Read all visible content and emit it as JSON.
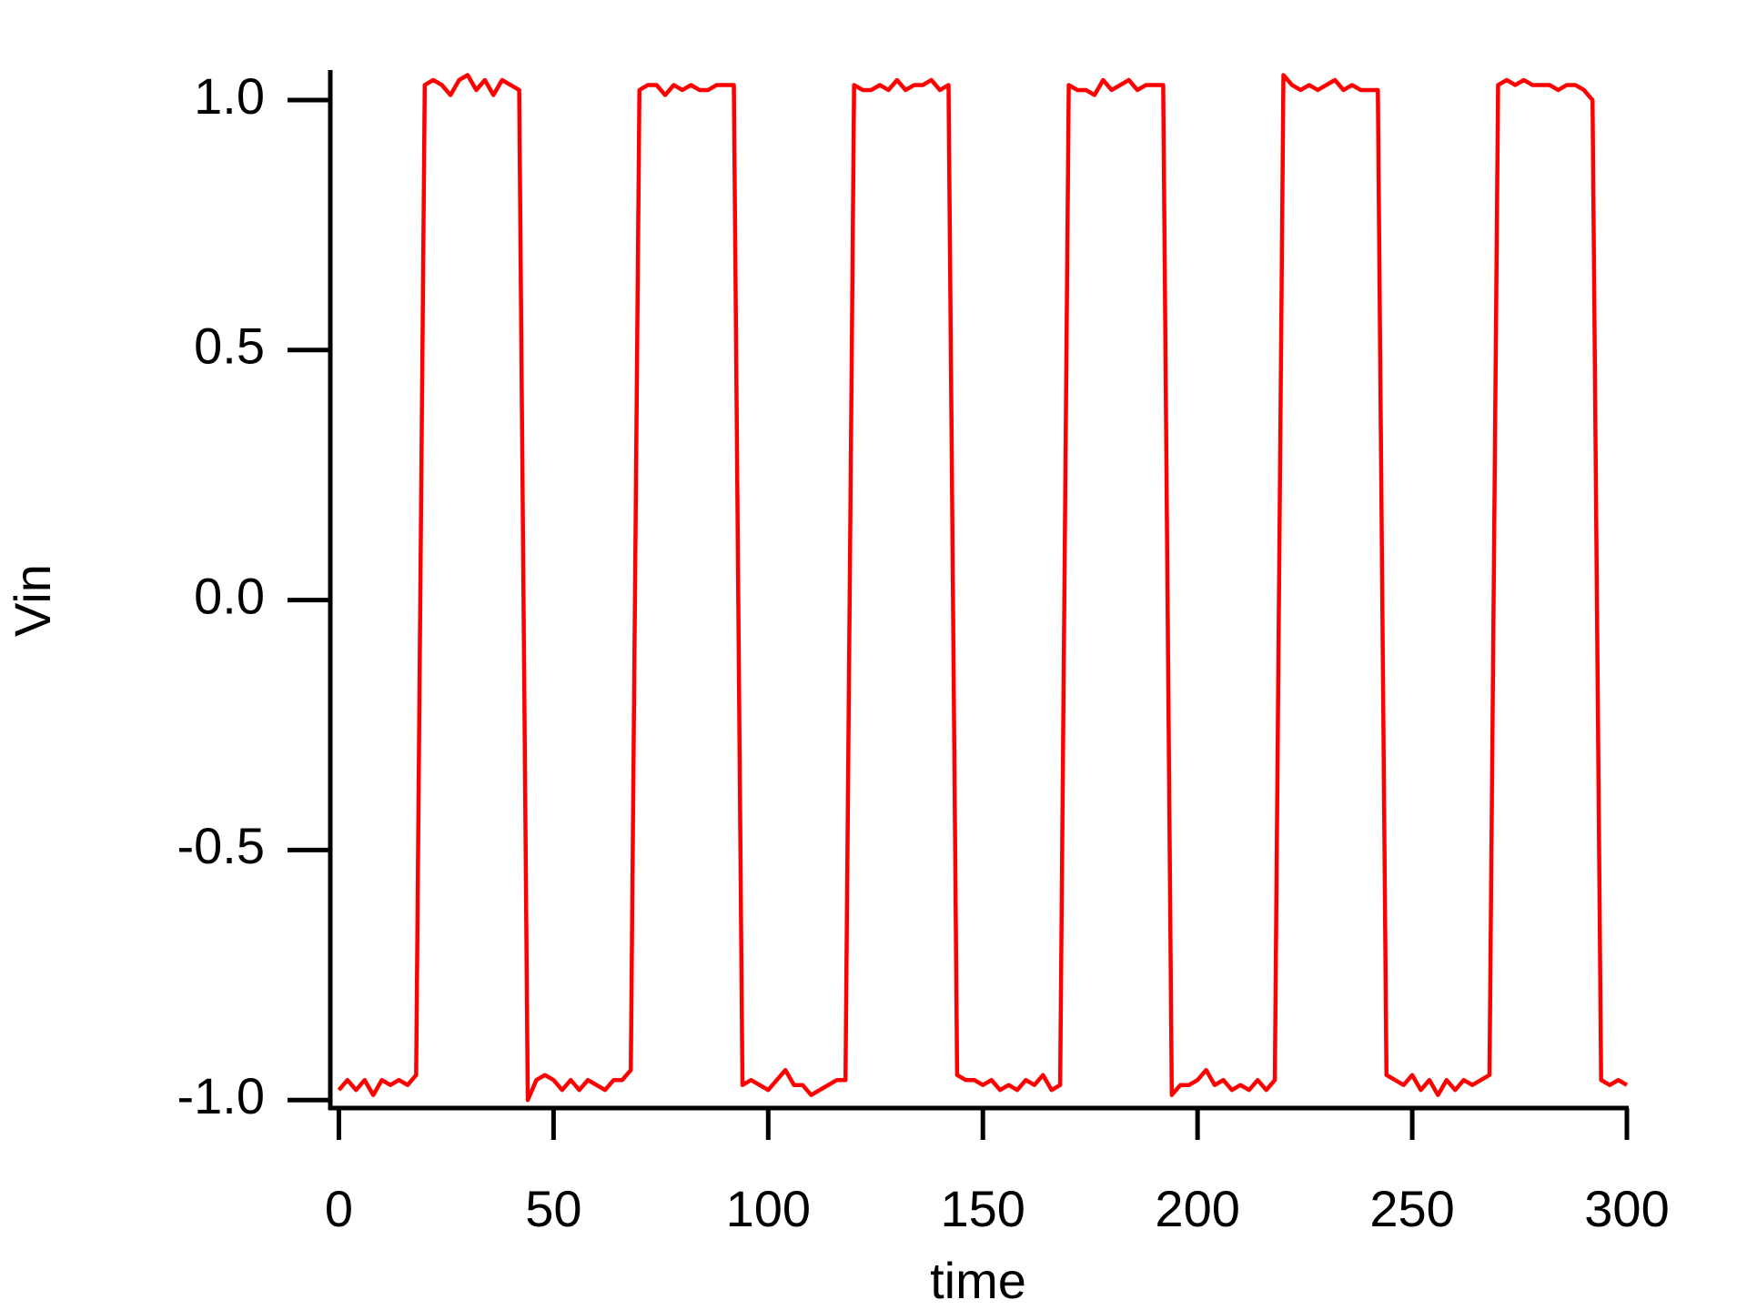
{
  "chart_data": {
    "type": "line",
    "x_label": "time",
    "y_label": "Vin",
    "xlim": [
      -2,
      300
    ],
    "ylim": [
      -1.016,
      1.06
    ],
    "xticks": [
      0,
      50,
      100,
      150,
      200,
      250,
      300
    ],
    "yticks": [
      {
        "value": -1,
        "label": "-1.0"
      },
      -0.5,
      {
        "value": 0,
        "label": "0.0"
      },
      0.5,
      {
        "value": 1,
        "label": "1.0"
      }
    ],
    "grid": false,
    "x": [
      0,
      2,
      4,
      6,
      8,
      10,
      12,
      14,
      16,
      18,
      20,
      22,
      24,
      26,
      28,
      30,
      32,
      34,
      36,
      38,
      40,
      42,
      44,
      46,
      48,
      50,
      52,
      54,
      56,
      58,
      60,
      62,
      64,
      66,
      68,
      70,
      72,
      74,
      76,
      78,
      80,
      82,
      84,
      86,
      88,
      90,
      92,
      94,
      96,
      98,
      100,
      102,
      104,
      106,
      108,
      110,
      112,
      114,
      116,
      118,
      120,
      122,
      124,
      126,
      128,
      130,
      132,
      134,
      136,
      138,
      140,
      142,
      144,
      146,
      148,
      150,
      152,
      154,
      156,
      158,
      160,
      162,
      164,
      166,
      168,
      170,
      172,
      174,
      176,
      178,
      180,
      182,
      184,
      186,
      188,
      190,
      192,
      194,
      196,
      198,
      200,
      202,
      204,
      206,
      208,
      210,
      212,
      214,
      216,
      218,
      220,
      222,
      224,
      226,
      228,
      230,
      232,
      234,
      236,
      238,
      240,
      242,
      244,
      246,
      248,
      250,
      252,
      254,
      256,
      258,
      260,
      262,
      264,
      266,
      268,
      270,
      272,
      274,
      276,
      278,
      280,
      282,
      284,
      286,
      288,
      290,
      292,
      294,
      296,
      298,
      300
    ],
    "series": [
      {
        "name": "Vin",
        "color": "#ff0000",
        "values": [
          -0.98,
          -0.96,
          -0.98,
          -0.96,
          -0.99,
          -0.96,
          -0.97,
          -0.96,
          -0.97,
          -0.95,
          1.03,
          1.04,
          1.03,
          1.01,
          1.04,
          1.05,
          1.02,
          1.04,
          1.01,
          1.04,
          1.03,
          1.02,
          -1.0,
          -0.96,
          -0.95,
          -0.96,
          -0.98,
          -0.96,
          -0.98,
          -0.96,
          -0.97,
          -0.98,
          -0.96,
          -0.96,
          -0.94,
          1.02,
          1.03,
          1.03,
          1.01,
          1.03,
          1.02,
          1.03,
          1.02,
          1.02,
          1.03,
          1.03,
          1.03,
          -0.97,
          -0.96,
          -0.97,
          -0.98,
          -0.96,
          -0.94,
          -0.97,
          -0.97,
          -0.99,
          -0.98,
          -0.97,
          -0.96,
          -0.96,
          1.03,
          1.02,
          1.02,
          1.03,
          1.02,
          1.04,
          1.02,
          1.03,
          1.03,
          1.04,
          1.02,
          1.03,
          -0.95,
          -0.96,
          -0.96,
          -0.97,
          -0.96,
          -0.98,
          -0.97,
          -0.98,
          -0.96,
          -0.97,
          -0.95,
          -0.98,
          -0.97,
          1.03,
          1.02,
          1.02,
          1.01,
          1.04,
          1.02,
          1.03,
          1.04,
          1.02,
          1.03,
          1.03,
          1.03,
          -0.99,
          -0.97,
          -0.97,
          -0.96,
          -0.94,
          -0.97,
          -0.96,
          -0.98,
          -0.97,
          -0.98,
          -0.96,
          -0.98,
          -0.96,
          1.05,
          1.03,
          1.02,
          1.03,
          1.02,
          1.03,
          1.04,
          1.02,
          1.03,
          1.02,
          1.02,
          1.02,
          -0.95,
          -0.96,
          -0.97,
          -0.95,
          -0.98,
          -0.96,
          -0.99,
          -0.96,
          -0.98,
          -0.96,
          -0.97,
          -0.96,
          -0.95,
          1.03,
          1.04,
          1.03,
          1.04,
          1.03,
          1.03,
          1.03,
          1.02,
          1.03,
          1.03,
          1.02,
          1.0,
          -0.96,
          -0.97,
          -0.96,
          -0.97
        ]
      }
    ]
  }
}
